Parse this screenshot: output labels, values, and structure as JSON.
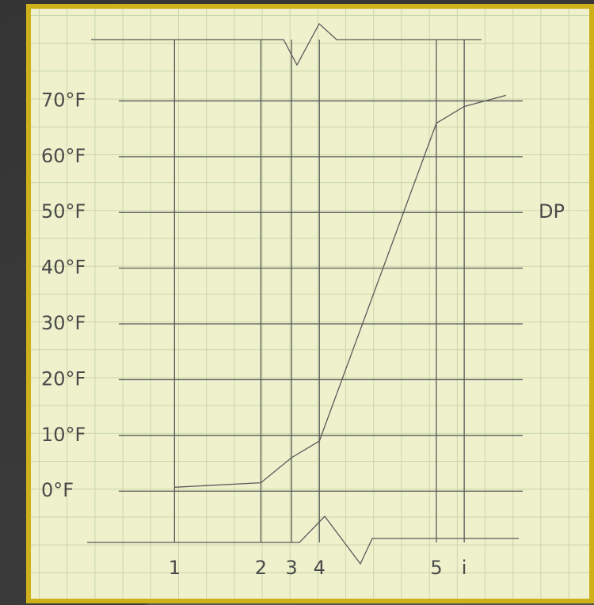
{
  "chart_data": {
    "type": "line",
    "x": [
      0,
      3.1,
      4.2,
      5.2,
      9.4,
      10.4,
      11.9
    ],
    "series": [
      {
        "name": "DP",
        "color": "#555555",
        "values": [
          0.7,
          1.5,
          6,
          9,
          66,
          69,
          71
        ]
      }
    ],
    "xlim": [
      -2,
      12.5
    ],
    "xticks": [
      {
        "value": 0,
        "label": "1"
      },
      {
        "value": 3.1,
        "label": "2"
      },
      {
        "value": 4.2,
        "label": "3"
      },
      {
        "value": 5.2,
        "label": "4"
      },
      {
        "value": 9.4,
        "label": "5"
      },
      {
        "value": 10.4,
        "label": "i"
      }
    ],
    "ylim": [
      -9.2,
      81
    ],
    "yticks": [
      {
        "value": 0,
        "label": "0°F"
      },
      {
        "value": 10,
        "label": "10°F"
      },
      {
        "value": 20,
        "label": "20°F"
      },
      {
        "value": 30,
        "label": "30°F"
      },
      {
        "value": 40,
        "label": "40°F"
      },
      {
        "value": 50,
        "label": "50°F"
      },
      {
        "value": 60,
        "label": "60°F"
      },
      {
        "value": 70,
        "label": "70°F"
      }
    ],
    "grid": true
  }
}
